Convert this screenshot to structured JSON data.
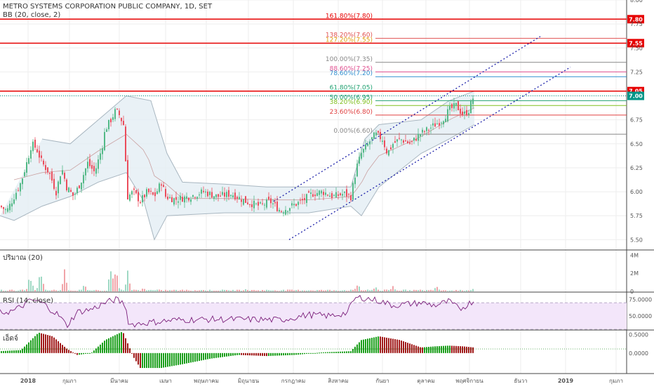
{
  "header": {
    "title": "METRO SYSTEMS CORPORATION PUBLIC COMPANY, 1D, SET",
    "indicator": "BB (20, close, 2)"
  },
  "colors": {
    "grid": "#eeeeee",
    "up": "#53b987",
    "down": "#eb4d5c",
    "band_fill": "#e3eef4",
    "band_line": "#a8b6c0",
    "channel": "#1e22aa",
    "red_line": "#e60000",
    "rsi_line": "#7b1f7b",
    "rsi_fill": "#f3e6fa",
    "macd_up": "#1a9e1a",
    "macd_down": "#a01818",
    "label_teal": "#009688"
  },
  "chart_data": [
    {
      "type": "candlestick",
      "name": "price",
      "ylim": [
        5.4,
        8.0
      ],
      "y_ticks": [
        "8.00",
        "7.75",
        "7.50",
        "7.25",
        "7.00",
        "6.75",
        "6.50",
        "6.25",
        "6.00",
        "5.75",
        "5.50"
      ],
      "x_ticks": [
        "2018",
        "กุมภา",
        "มีนาคม",
        "เมษา",
        "พฤษภาคม",
        "มิถุนายน",
        "กรกฎาคม",
        "สิงหาคม",
        "กันยา",
        "ตุลาคม",
        "พฤศจิกายน",
        "ธันวา",
        "2019",
        "กุมภา"
      ],
      "close_path": [
        [
          0,
          5.85
        ],
        [
          10,
          5.8
        ],
        [
          20,
          5.95
        ],
        [
          30,
          6.1
        ],
        [
          40,
          6.35
        ],
        [
          45,
          6.5
        ],
        [
          52,
          6.45
        ],
        [
          60,
          6.3
        ],
        [
          70,
          6.2
        ],
        [
          80,
          6.0
        ],
        [
          88,
          6.25
        ],
        [
          95,
          6.05
        ],
        [
          105,
          5.95
        ],
        [
          115,
          6.1
        ],
        [
          125,
          6.3
        ],
        [
          135,
          6.2
        ],
        [
          145,
          6.45
        ],
        [
          150,
          6.65
        ],
        [
          158,
          6.75
        ],
        [
          165,
          6.85
        ],
        [
          170,
          6.8
        ],
        [
          176,
          6.7
        ],
        [
          182,
          5.95
        ],
        [
          190,
          6.0
        ],
        [
          200,
          5.9
        ],
        [
          210,
          6.0
        ],
        [
          220,
          5.95
        ],
        [
          230,
          6.1
        ],
        [
          236,
          5.95
        ],
        [
          250,
          5.92
        ],
        [
          270,
          5.95
        ],
        [
          290,
          6.0
        ],
        [
          310,
          5.95
        ],
        [
          330,
          5.98
        ],
        [
          350,
          5.9
        ],
        [
          370,
          5.85
        ],
        [
          385,
          5.9
        ],
        [
          400,
          5.8
        ],
        [
          415,
          5.85
        ],
        [
          430,
          5.9
        ],
        [
          445,
          5.98
        ],
        [
          460,
          6.0
        ],
        [
          475,
          5.95
        ],
        [
          490,
          5.98
        ],
        [
          500,
          5.95
        ],
        [
          508,
          6.25
        ],
        [
          515,
          6.4
        ],
        [
          525,
          6.5
        ],
        [
          535,
          6.6
        ],
        [
          545,
          6.55
        ],
        [
          552,
          6.4
        ],
        [
          560,
          6.5
        ],
        [
          570,
          6.55
        ],
        [
          585,
          6.5
        ],
        [
          598,
          6.6
        ],
        [
          610,
          6.65
        ],
        [
          620,
          6.7
        ],
        [
          630,
          6.75
        ],
        [
          640,
          6.85
        ],
        [
          650,
          6.9
        ],
        [
          660,
          6.8
        ],
        [
          668,
          6.85
        ],
        [
          676,
          7.02
        ]
      ],
      "bb_upper": [
        [
          60,
          6.55
        ],
        [
          100,
          6.5
        ],
        [
          140,
          6.75
        ],
        [
          180,
          7.0
        ],
        [
          215,
          6.95
        ],
        [
          238,
          6.4
        ],
        [
          260,
          6.1
        ],
        [
          320,
          6.08
        ],
        [
          380,
          6.05
        ],
        [
          440,
          6.05
        ],
        [
          500,
          6.05
        ],
        [
          520,
          6.55
        ],
        [
          540,
          6.7
        ],
        [
          600,
          6.75
        ],
        [
          640,
          6.95
        ],
        [
          676,
          7.05
        ]
      ],
      "bb_lower": [
        [
          0,
          5.75
        ],
        [
          20,
          5.7
        ],
        [
          60,
          5.85
        ],
        [
          100,
          5.95
        ],
        [
          140,
          6.1
        ],
        [
          180,
          6.2
        ],
        [
          205,
          5.9
        ],
        [
          220,
          5.5
        ],
        [
          238,
          5.75
        ],
        [
          320,
          5.78
        ],
        [
          380,
          5.78
        ],
        [
          440,
          5.78
        ],
        [
          500,
          5.85
        ],
        [
          515,
          5.75
        ],
        [
          540,
          6.05
        ],
        [
          600,
          6.4
        ],
        [
          640,
          6.55
        ],
        [
          676,
          6.7
        ]
      ],
      "channel_lines": [
        {
          "from": [
            412,
            5.5
          ],
          "to": [
            813,
            7.3
          ]
        },
        {
          "from": [
            390,
            5.9
          ],
          "to": [
            770,
            7.62
          ]
        }
      ],
      "horizontal_lines": [
        {
          "value": 7.8,
          "label": "7.80"
        },
        {
          "value": 7.55,
          "label": "7.55"
        },
        {
          "value": 7.05,
          "label": "7.05"
        }
      ],
      "last_price": {
        "value": 7.0,
        "label": "7.00"
      },
      "fib_levels": [
        {
          "label": "161.80%(7.80)",
          "value": 7.8,
          "color": "#e60000"
        },
        {
          "label": "138.20%(7.60)",
          "value": 7.6,
          "color": "#e05050"
        },
        {
          "label": "127.20%(7.55)",
          "value": 7.55,
          "color": "#e0a010"
        },
        {
          "label": "100.00%(7.35)",
          "value": 7.35,
          "color": "#888888"
        },
        {
          "label": "88.60%(7.25)",
          "value": 7.25,
          "color": "#e05090"
        },
        {
          "label": "78.60%(7.20)",
          "value": 7.2,
          "color": "#3090d0"
        },
        {
          "label": "61.80%(7.05)",
          "value": 7.05,
          "color": "#20a070"
        },
        {
          "label": "50.00%(6.95)",
          "value": 6.95,
          "color": "#20a070"
        },
        {
          "label": "38.20%(6.90)",
          "value": 6.9,
          "color": "#80c020"
        },
        {
          "label": "23.60%(6.80)",
          "value": 6.8,
          "color": "#e04040"
        },
        {
          "label": "0.00%(6.60)",
          "value": 6.6,
          "color": "#888888"
        }
      ]
    },
    {
      "type": "bar",
      "name": "volume",
      "legend": "ปริมาณ (20)",
      "y_ticks": [
        "4M",
        "2M",
        "0"
      ],
      "ylim": [
        0,
        4.5
      ],
      "peaks": [
        [
          43,
          2.0
        ],
        [
          58,
          2.6
        ],
        [
          92,
          2.6
        ],
        [
          120,
          0.8
        ],
        [
          158,
          3.3
        ],
        [
          165,
          2.7
        ],
        [
          182,
          2.5
        ],
        [
          205,
          0.5
        ],
        [
          350,
          0.4
        ],
        [
          510,
          1.0
        ],
        [
          535,
          0.7
        ],
        [
          560,
          0.7
        ],
        [
          622,
          0.9
        ],
        [
          676,
          0.6
        ]
      ]
    },
    {
      "type": "line",
      "name": "rsi",
      "legend": "RSI (14, close)",
      "y_ticks": [
        "75.0000",
        "50.0000"
      ],
      "ylim": [
        30,
        85
      ],
      "band": [
        30,
        70
      ],
      "path": [
        [
          0,
          55
        ],
        [
          20,
          58
        ],
        [
          45,
          74
        ],
        [
          60,
          70
        ],
        [
          85,
          50
        ],
        [
          95,
          35
        ],
        [
          110,
          56
        ],
        [
          130,
          60
        ],
        [
          150,
          70
        ],
        [
          165,
          75
        ],
        [
          178,
          68
        ],
        [
          184,
          37
        ],
        [
          210,
          40
        ],
        [
          250,
          44
        ],
        [
          300,
          45
        ],
        [
          350,
          45
        ],
        [
          400,
          44
        ],
        [
          440,
          52
        ],
        [
          470,
          50
        ],
        [
          495,
          55
        ],
        [
          505,
          76
        ],
        [
          515,
          78
        ],
        [
          540,
          73
        ],
        [
          560,
          66
        ],
        [
          580,
          68
        ],
        [
          600,
          70
        ],
        [
          620,
          66
        ],
        [
          640,
          72
        ],
        [
          655,
          60
        ],
        [
          676,
          74
        ]
      ]
    },
    {
      "type": "histogram",
      "name": "macd",
      "legend": "เอ็ดจ์",
      "y_ticks": [
        "0.5000",
        "0.0000"
      ],
      "ylim": [
        -0.55,
        0.6
      ],
      "signal": 0.11,
      "path": [
        [
          0,
          0.05
        ],
        [
          30,
          0.08
        ],
        [
          55,
          0.55
        ],
        [
          75,
          0.45
        ],
        [
          95,
          0.12
        ],
        [
          110,
          -0.05
        ],
        [
          130,
          0.0
        ],
        [
          150,
          0.35
        ],
        [
          175,
          0.58
        ],
        [
          190,
          -0.1
        ],
        [
          200,
          -0.4
        ],
        [
          230,
          -0.4
        ],
        [
          260,
          -0.3
        ],
        [
          300,
          -0.15
        ],
        [
          340,
          -0.05
        ],
        [
          380,
          -0.08
        ],
        [
          420,
          -0.05
        ],
        [
          460,
          0.02
        ],
        [
          500,
          0.05
        ],
        [
          515,
          0.35
        ],
        [
          540,
          0.45
        ],
        [
          570,
          0.35
        ],
        [
          600,
          0.15
        ],
        [
          620,
          0.18
        ],
        [
          640,
          0.2
        ],
        [
          660,
          0.18
        ],
        [
          676,
          0.15
        ]
      ]
    }
  ]
}
